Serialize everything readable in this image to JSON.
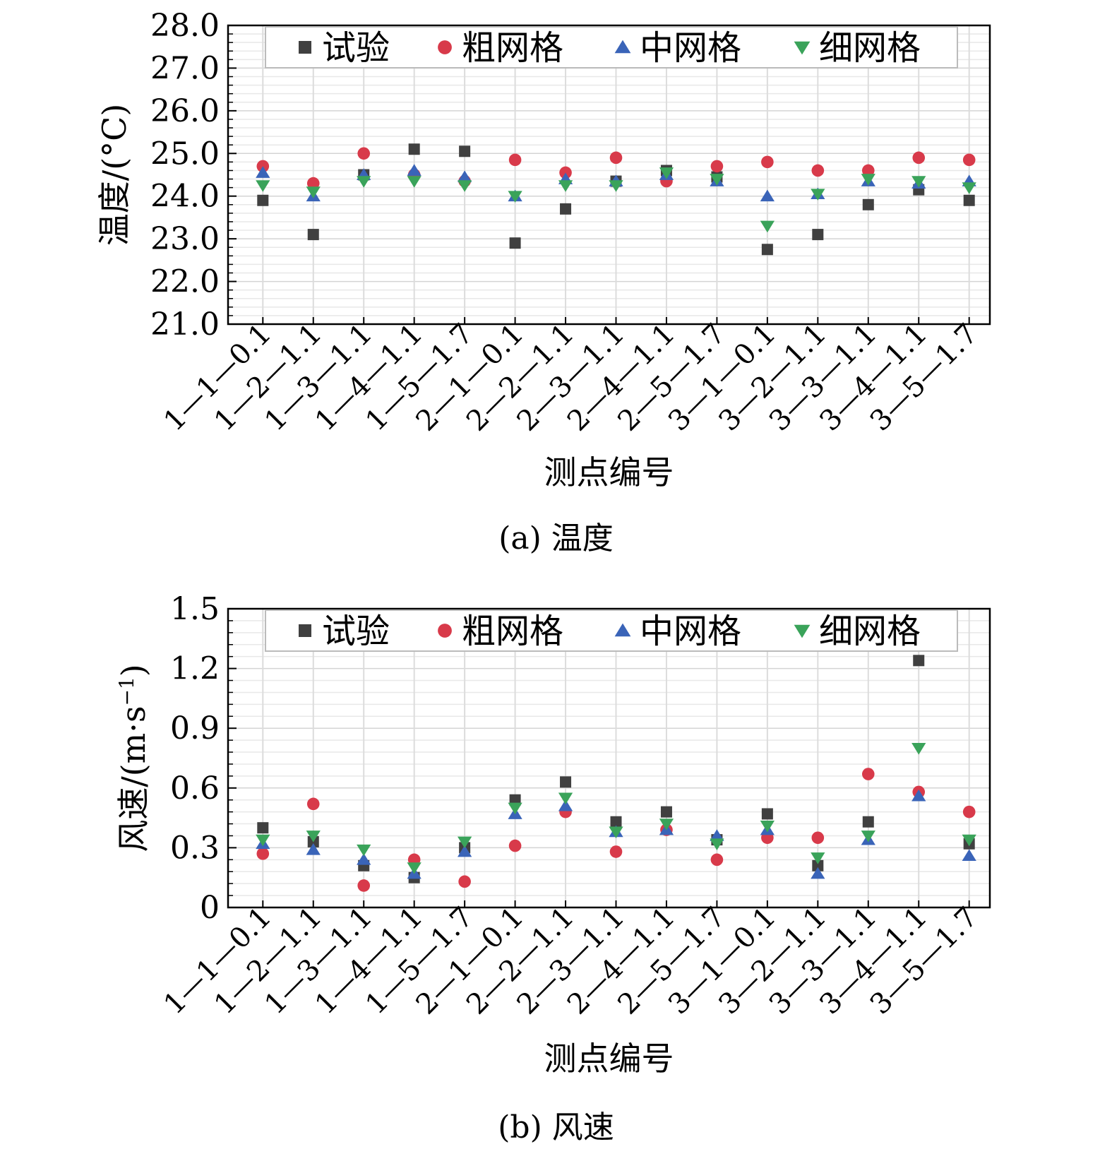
{
  "categories": [
    "1—1—0.1",
    "1—2—1.1",
    "1—3—1.1",
    "1—4—1.1",
    "1—5—1.7",
    "2—1—0.1",
    "2—2—1.1",
    "2—3—1.1",
    "2—4—1.1",
    "2—5—1.7",
    "3—1—0.1",
    "3—2—1.1",
    "3—3—1.1",
    "3—4—1.1",
    "3—5—1.7"
  ],
  "series_styles": [
    {
      "name": "试验",
      "color": "#404040",
      "marker": "square"
    },
    {
      "name": "粗网格",
      "color": "#d83a4a",
      "marker": "circle"
    },
    {
      "name": "中网格",
      "color": "#3a64b8",
      "marker": "triangle-up"
    },
    {
      "name": "细网格",
      "color": "#3aa35a",
      "marker": "triangle-down"
    }
  ],
  "chart_data": [
    {
      "type": "scatter",
      "caption": "(a) 温度",
      "xlabel": "测点编号",
      "ylabel": "温度/(°C)",
      "ylim": [
        21.0,
        28.0
      ],
      "yticks": [
        "21.0",
        "22.0",
        "23.0",
        "24.0",
        "25.0",
        "26.0",
        "27.0",
        "28.0"
      ],
      "grid": true,
      "legend_position": "top",
      "series": [
        {
          "name": "试验",
          "values": [
            23.9,
            23.1,
            24.5,
            25.1,
            25.05,
            22.9,
            23.7,
            24.35,
            24.6,
            24.45,
            22.75,
            23.1,
            23.8,
            24.15,
            23.9
          ]
        },
        {
          "name": "粗网格",
          "values": [
            24.7,
            24.3,
            25.0,
            24.5,
            24.35,
            24.85,
            24.55,
            24.9,
            24.35,
            24.7,
            24.8,
            24.6,
            24.6,
            24.9,
            24.85
          ]
        },
        {
          "name": "中网格",
          "values": [
            24.55,
            24.0,
            24.5,
            24.6,
            24.45,
            24.0,
            24.4,
            24.35,
            24.5,
            24.35,
            24.0,
            24.05,
            24.35,
            24.3,
            24.35
          ]
        },
        {
          "name": "细网格",
          "values": [
            24.25,
            24.1,
            24.35,
            24.35,
            24.25,
            24.0,
            24.25,
            24.25,
            24.55,
            24.4,
            23.3,
            24.05,
            24.4,
            24.35,
            24.2
          ]
        }
      ]
    },
    {
      "type": "scatter",
      "caption": "(b) 风速",
      "xlabel": "测点编号",
      "ylabel": "风速/(m·s",
      "ylabel_sup": "−1",
      "ylabel_close": ")",
      "ylim": [
        0,
        1.5
      ],
      "yticks": [
        "0",
        "0.3",
        "0.6",
        "0.9",
        "1.2",
        "1.5"
      ],
      "grid": true,
      "legend_position": "top",
      "series": [
        {
          "name": "试验",
          "values": [
            0.4,
            0.33,
            0.21,
            0.15,
            0.3,
            0.54,
            0.63,
            0.43,
            0.48,
            0.34,
            0.47,
            0.21,
            0.43,
            1.24,
            0.32
          ]
        },
        {
          "name": "粗网格",
          "values": [
            0.27,
            0.52,
            0.11,
            0.24,
            0.13,
            0.31,
            0.48,
            0.28,
            0.39,
            0.24,
            0.35,
            0.35,
            0.67,
            0.58,
            0.48
          ]
        },
        {
          "name": "中网格",
          "values": [
            0.32,
            0.29,
            0.24,
            0.17,
            0.28,
            0.47,
            0.51,
            0.38,
            0.39,
            0.36,
            0.39,
            0.17,
            0.34,
            0.56,
            0.26
          ]
        },
        {
          "name": "细网格",
          "values": [
            0.34,
            0.36,
            0.29,
            0.2,
            0.33,
            0.5,
            0.55,
            0.38,
            0.42,
            0.32,
            0.41,
            0.25,
            0.36,
            0.8,
            0.34
          ]
        }
      ]
    }
  ]
}
